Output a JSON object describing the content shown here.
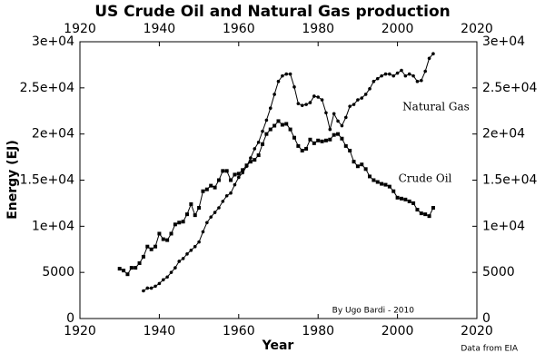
{
  "chart_data": {
    "type": "line",
    "title": "US Crude Oil and Natural Gas production",
    "xlabel": "Year",
    "ylabel": "Energy (EJ)",
    "xlim": [
      1920,
      2020
    ],
    "ylim": [
      0,
      30000
    ],
    "xticks": [
      1920,
      1940,
      1960,
      1980,
      2000,
      2020
    ],
    "yticks": [
      0,
      5000,
      {
        "value": 10000,
        "label": "1e+04"
      },
      {
        "value": 15000,
        "label": "1.5e+04"
      },
      {
        "value": 20000,
        "label": "2e+04"
      },
      {
        "value": 25000,
        "label": "2.5e+04"
      },
      {
        "value": 30000,
        "label": "3e+04"
      }
    ],
    "mirror_axes": true,
    "annotations": [
      "By Ugo Bardi - 2010",
      "Data from EIA"
    ],
    "series": [
      {
        "name": "Natural Gas",
        "color": "#000000",
        "marker": "circle",
        "x": [
          1936,
          1937,
          1938,
          1939,
          1940,
          1941,
          1942,
          1943,
          1944,
          1945,
          1946,
          1947,
          1948,
          1949,
          1950,
          1951,
          1952,
          1953,
          1954,
          1955,
          1956,
          1957,
          1958,
          1959,
          1960,
          1961,
          1962,
          1963,
          1964,
          1965,
          1966,
          1967,
          1968,
          1969,
          1970,
          1971,
          1972,
          1973,
          1974,
          1975,
          1976,
          1977,
          1978,
          1979,
          1980,
          1981,
          1982,
          1983,
          1984,
          1985,
          1986,
          1987,
          1988,
          1989,
          1990,
          1991,
          1992,
          1993,
          1994,
          1995,
          1996,
          1997,
          1998,
          1999,
          2000,
          2001,
          2002,
          2003,
          2004,
          2005,
          2006,
          2007,
          2008,
          2009
        ],
        "values": [
          3000,
          3300,
          3300,
          3500,
          3800,
          4200,
          4500,
          5000,
          5500,
          6200,
          6500,
          7000,
          7400,
          7800,
          8300,
          9400,
          10400,
          11000,
          11500,
          12000,
          12700,
          13300,
          13600,
          14500,
          15300,
          15800,
          16500,
          17400,
          18400,
          19100,
          20300,
          21500,
          22800,
          24300,
          25700,
          26300,
          26500,
          26500,
          25100,
          23300,
          23100,
          23200,
          23400,
          24100,
          24000,
          23700,
          22300,
          20500,
          22200,
          21400,
          20900,
          21800,
          23000,
          23200,
          23700,
          23900,
          24300,
          24900,
          25700,
          26000,
          26300,
          26500,
          26500,
          26300,
          26600,
          26900,
          26300,
          26500,
          26300,
          25700,
          25800,
          26800,
          28200,
          28700
        ]
      },
      {
        "name": "Crude Oil",
        "color": "#000000",
        "marker": "square",
        "x": [
          1930,
          1931,
          1932,
          1933,
          1934,
          1935,
          1936,
          1937,
          1938,
          1939,
          1940,
          1941,
          1942,
          1943,
          1944,
          1945,
          1946,
          1947,
          1948,
          1949,
          1950,
          1951,
          1952,
          1953,
          1954,
          1955,
          1956,
          1957,
          1958,
          1959,
          1960,
          1961,
          1962,
          1963,
          1964,
          1965,
          1966,
          1967,
          1968,
          1969,
          1970,
          1971,
          1972,
          1973,
          1974,
          1975,
          1976,
          1977,
          1978,
          1979,
          1980,
          1981,
          1982,
          1983,
          1984,
          1985,
          1986,
          1987,
          1988,
          1989,
          1990,
          1991,
          1992,
          1993,
          1994,
          1995,
          1996,
          1997,
          1998,
          1999,
          2000,
          2001,
          2002,
          2003,
          2004,
          2005,
          2006,
          2007,
          2008,
          2009
        ],
        "values": [
          5400,
          5200,
          4800,
          5500,
          5500,
          6000,
          6700,
          7800,
          7500,
          7800,
          9200,
          8600,
          8500,
          9200,
          10200,
          10400,
          10500,
          11300,
          12400,
          11200,
          12000,
          13800,
          14000,
          14400,
          14200,
          15000,
          16000,
          16000,
          15000,
          15600,
          15700,
          16100,
          16600,
          17000,
          17200,
          17700,
          18900,
          20000,
          20500,
          20900,
          21400,
          21000,
          21100,
          20500,
          19600,
          18700,
          18200,
          18400,
          19400,
          19000,
          19300,
          19200,
          19300,
          19400,
          19900,
          20000,
          19500,
          18700,
          18200,
          17000,
          16500,
          16700,
          16200,
          15400,
          15000,
          14800,
          14600,
          14500,
          14300,
          13800,
          13100,
          13000,
          12900,
          12700,
          12500,
          11800,
          11400,
          11300,
          11100,
          12000
        ]
      }
    ]
  }
}
